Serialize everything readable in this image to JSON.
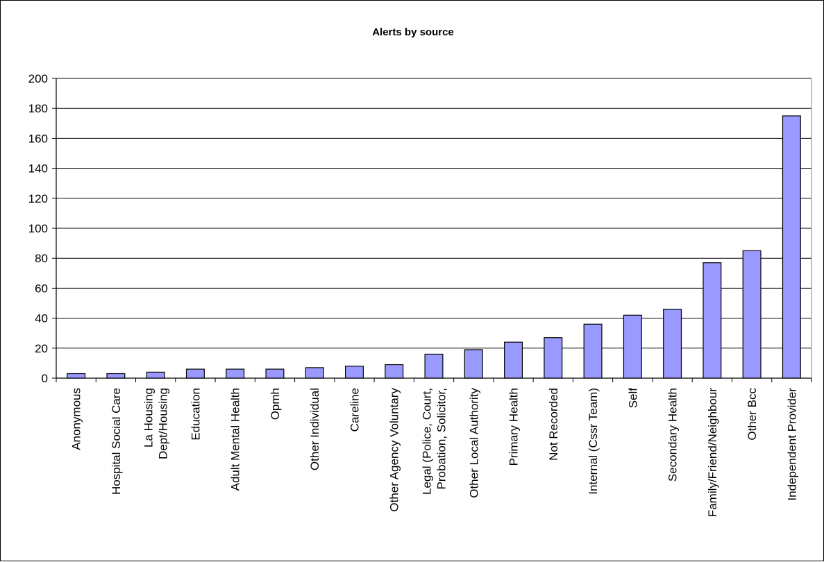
{
  "chart_data": {
    "type": "bar",
    "title": "Alerts by source",
    "xlabel": "",
    "ylabel": "",
    "ylim": [
      0,
      200
    ],
    "yticks": [
      0,
      20,
      40,
      60,
      80,
      100,
      120,
      140,
      160,
      180,
      200
    ],
    "grid": true,
    "legend": "none",
    "bar_color": "#9999ff",
    "categories": [
      [
        "Anonymous"
      ],
      [
        "Hospital Social Care"
      ],
      [
        "La Housing",
        "Dept/Housing"
      ],
      [
        "Education"
      ],
      [
        "Adult Mental Health"
      ],
      [
        "Opmh"
      ],
      [
        "Other Individual"
      ],
      [
        "Careline"
      ],
      [
        "Other Agency Voluntary"
      ],
      [
        "Legal (Police, Court,",
        "Probation, Solicitor,"
      ],
      [
        "Other Local Authority"
      ],
      [
        "Primary Health"
      ],
      [
        "Not Recorded"
      ],
      [
        "Internal (Cssr Team)"
      ],
      [
        "Self"
      ],
      [
        "Secondary Health"
      ],
      [
        "Family/Friend/Neighbour"
      ],
      [
        "Other Bcc"
      ],
      [
        "Independent Provider"
      ]
    ],
    "values": [
      3,
      3,
      4,
      6,
      6,
      6,
      7,
      8,
      9,
      16,
      19,
      24,
      27,
      36,
      42,
      46,
      77,
      85,
      175
    ]
  }
}
